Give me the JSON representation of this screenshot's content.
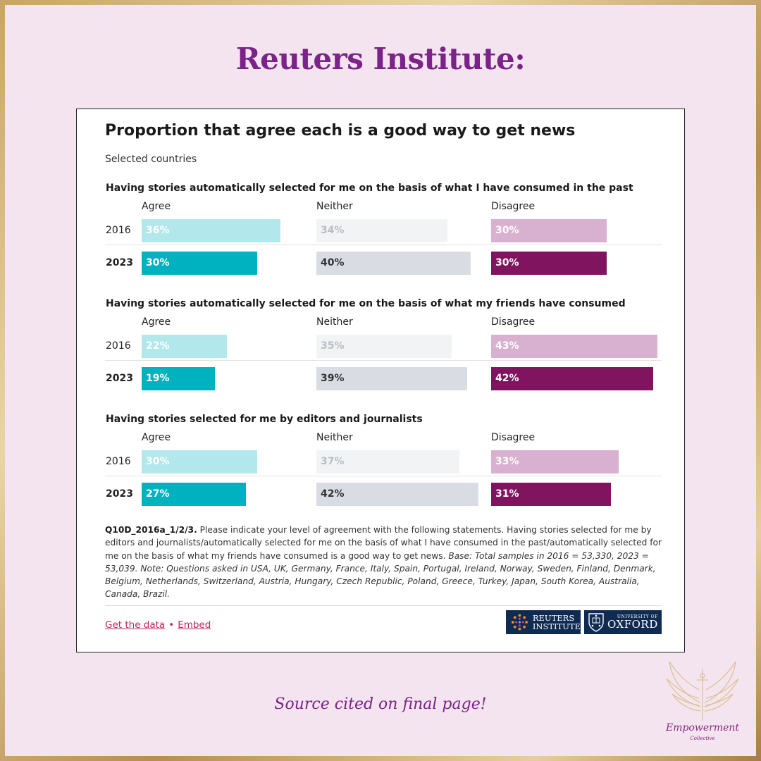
{
  "headline": "Reuters Institute:",
  "colors": {
    "agree_2016": "#b2e7ec",
    "agree_2023": "#00b2bf",
    "neither_2016": "#f2f3f5",
    "neither_2023": "#d9dde3",
    "disagree_2016": "#d9b1d0",
    "disagree_2023": "#80145e"
  },
  "chart_data": {
    "type": "bar",
    "title": "Proportion that agree each is a good way to get news",
    "subtitle": "Selected countries",
    "columns": [
      "Agree",
      "Neither",
      "Disagree"
    ],
    "panels": [
      {
        "title": "Having stories automatically selected for me on the basis of what I have consumed in the past",
        "rows": [
          {
            "year": "2016",
            "values": [
              36,
              34,
              30
            ],
            "labels": [
              "36%",
              "34%",
              "30%"
            ]
          },
          {
            "year": "2023",
            "values": [
              30,
              40,
              30
            ],
            "labels": [
              "30%",
              "40%",
              "30%"
            ]
          }
        ]
      },
      {
        "title": "Having stories automatically selected for me on the basis of what my friends have consumed",
        "rows": [
          {
            "year": "2016",
            "values": [
              22,
              35,
              43
            ],
            "labels": [
              "22%",
              "35%",
              "43%"
            ]
          },
          {
            "year": "2023",
            "values": [
              19,
              39,
              42
            ],
            "labels": [
              "19%",
              "39%",
              "42%"
            ]
          }
        ]
      },
      {
        "title": "Having stories selected for me by editors and journalists",
        "rows": [
          {
            "year": "2016",
            "values": [
              30,
              37,
              33
            ],
            "labels": [
              "30%",
              "37%",
              "33%"
            ]
          },
          {
            "year": "2023",
            "values": [
              27,
              42,
              31
            ],
            "labels": [
              "27%",
              "42%",
              "31%"
            ]
          }
        ]
      }
    ]
  },
  "notes": {
    "code": "Q10D_2016a_1/2/3.",
    "question": " Please indicate your level of agreement with the following statements. Having stories selected for me by editors and journalists/automatically selected for me on the basis of what I have consumed in the past/automatically selected for me on the basis of what my friends have consumed is a good way to get news. ",
    "base": "Base: Total samples in 2016 = 53,330, 2023 = 53,039. Note: Questions asked in USA, UK, Germany, France, Italy, Spain, Portugal, Ireland, Norway, Sweden, Finland, Denmark, Belgium, Netherlands, Switzerland, Austria, Hungary, Czech Republic, Poland, Greece, Turkey, Japan, South Korea, Australia, Canada, Brazil."
  },
  "footer": {
    "get_data": "Get the data",
    "separator": "•",
    "embed": "Embed",
    "logo_reuters_line1": "REUTERS",
    "logo_reuters_line2": "INSTITUTE",
    "logo_oxford_small": "UNIVERSITY OF",
    "logo_oxford_big": "OXFORD"
  },
  "source_line": "Source cited on final page!",
  "brand": {
    "line1": "Empowerment",
    "line2": "Collective"
  }
}
